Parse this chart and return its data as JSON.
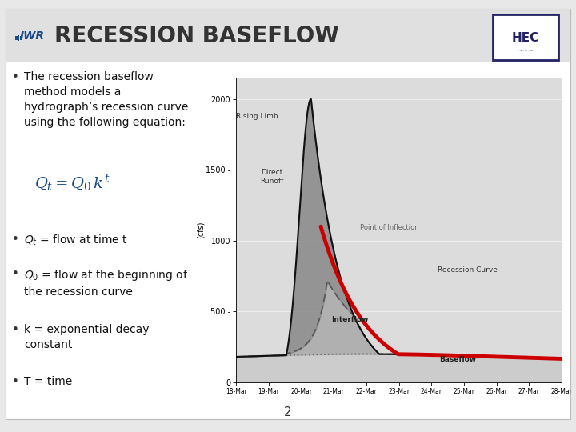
{
  "title": "RECESSION BASEFLOW",
  "bg_color": "#e8e8e8",
  "slide_bg": "#ffffff",
  "title_bg": "#e8e8e8",
  "title_color": "#333333",
  "iwr_color": "#1a4a8a",
  "bullet_color": "#111111",
  "bullet_fontsize": 10,
  "title_fontsize": 20,
  "equation_color": "#1a4a8a",
  "hec_border_color": "#222266",
  "x_labels": [
    "18-Mar",
    "19-Mar",
    "20-Mar",
    "21-Mar",
    "22-Mar",
    "23-Mar",
    "24-Mar",
    "25-Mar",
    "26-Mar",
    "27-Mar",
    "28-Mar"
  ],
  "y_ticks": [
    0,
    500,
    1000,
    1500,
    2000
  ],
  "ylabel": "(cfs)",
  "page_number": "2",
  "recession_color": "#cc0000",
  "hydrograph_color": "#111111",
  "chart_bg": "#dcdcdc",
  "baseflow_fill": "#c8c8c8",
  "interflow_fill": "#b0b0b0",
  "direct_fill": "#909090"
}
